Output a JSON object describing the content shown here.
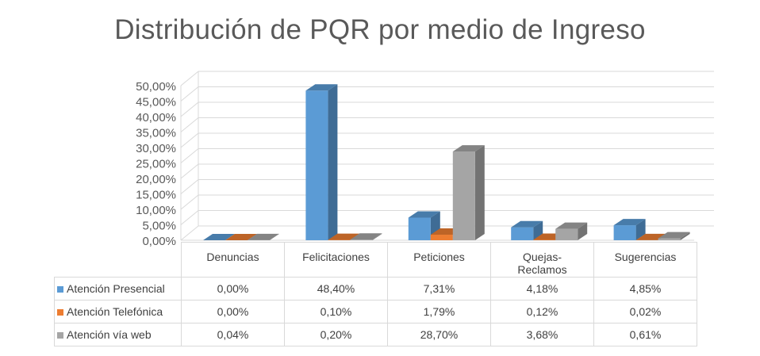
{
  "chart_data": {
    "type": "bar",
    "title": "Distribución de PQR por medio de Ingreso",
    "categories": [
      "Denuncias",
      "Felicitaciones",
      "Peticiones",
      "Quejas-Reclamos",
      "Sugerencias"
    ],
    "category_lines": [
      [
        "Denuncias"
      ],
      [
        "Felicitaciones"
      ],
      [
        "Peticiones"
      ],
      [
        "Quejas-",
        "Reclamos"
      ],
      [
        "Sugerencias"
      ]
    ],
    "series": [
      {
        "name": "Atención Presencial",
        "color": "#5b9bd5",
        "values": [
          0.0,
          48.4,
          7.31,
          4.18,
          4.85
        ],
        "labels": [
          "0,00%",
          "48,40%",
          "7,31%",
          "4,18%",
          "4,85%"
        ]
      },
      {
        "name": "Atención Telefónica",
        "color": "#ed7d31",
        "values": [
          0.0,
          0.1,
          1.79,
          0.12,
          0.02
        ],
        "labels": [
          "0,00%",
          "0,10%",
          "1,79%",
          "0,12%",
          "0,02%"
        ]
      },
      {
        "name": "Atención vía web",
        "color": "#a5a5a5",
        "values": [
          0.04,
          0.2,
          28.7,
          3.68,
          0.61
        ],
        "labels": [
          "0,04%",
          "0,20%",
          "28,70%",
          "3,68%",
          "0,61%"
        ]
      }
    ],
    "yticks": [
      "0,00%",
      "5,00%",
      "10,00%",
      "15,00%",
      "20,00%",
      "25,00%",
      "30,00%",
      "35,00%",
      "40,00%",
      "45,00%",
      "50,00%"
    ],
    "ylim": [
      0,
      50
    ],
    "grid": true,
    "legend": "data-table"
  }
}
